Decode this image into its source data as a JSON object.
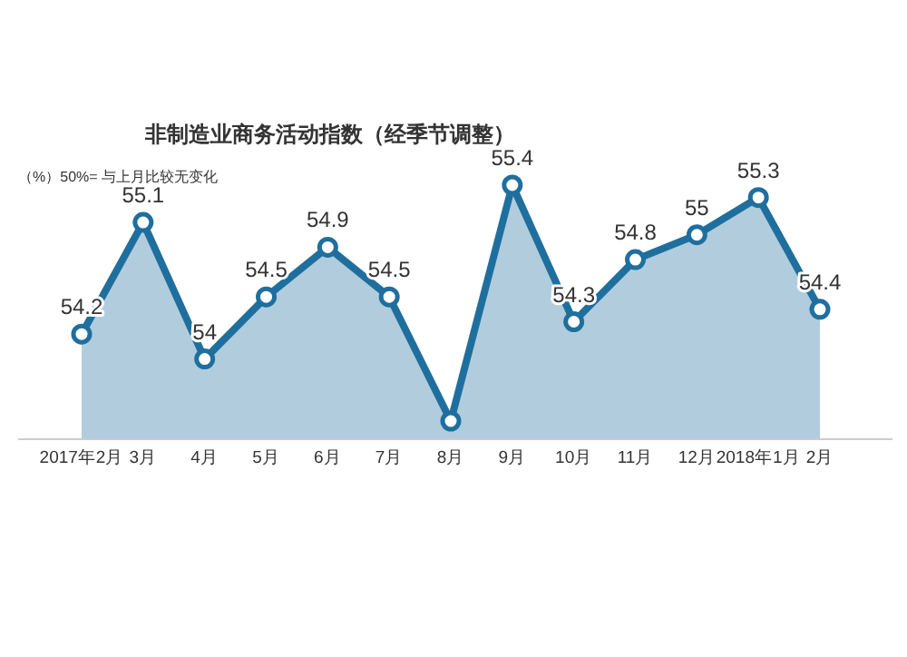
{
  "chart_data": {
    "type": "area",
    "title": "非制造业商务活动指数（经季节调整）",
    "annotations": [
      "（%）50%= 与上月比较无变化"
    ],
    "categories": [
      "2017年2月",
      "3月",
      "4月",
      "5月",
      "6月",
      "7月",
      "8月",
      "9月",
      "10月",
      "11月",
      "12月",
      "2018年1月",
      "2月"
    ],
    "series": [
      {
        "color": "#1f6f9e",
        "values": [
          54.2,
          55.1,
          54,
          54.5,
          54.9,
          54.5,
          53.5,
          55.4,
          54.3,
          54.8,
          55,
          55.3,
          54.4
        ],
        "value_labels": [
          "54.2",
          "55.1",
          "54",
          "54.5",
          "54.9",
          "54.5",
          null,
          "55.4",
          "54.3",
          "54.8",
          "55",
          "55.3",
          "54.4"
        ]
      }
    ],
    "marker": "circle",
    "line_style": "solid",
    "grid": false
  }
}
